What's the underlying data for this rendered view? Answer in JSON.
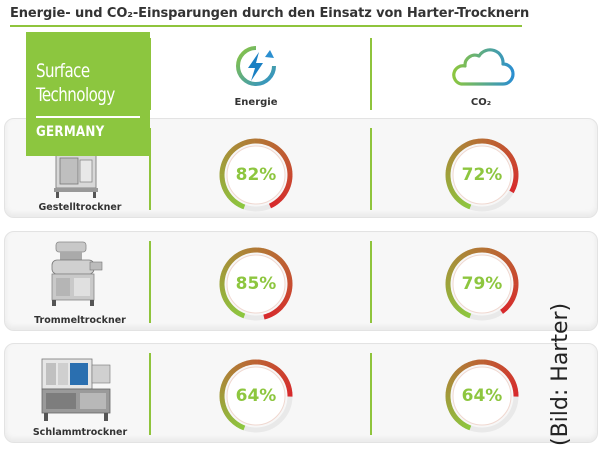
{
  "title": "Energie- und CO₂-Einsparungen durch den Einsatz von Harter-Trocknern",
  "badge": {
    "line1": "Surface",
    "line2": "Technology",
    "line3": "GERMANY"
  },
  "columns": [
    {
      "label": "Energie",
      "icon": "lightning-recycle-icon"
    },
    {
      "label": "CO₂",
      "icon": "cloud-icon"
    }
  ],
  "rows": [
    {
      "label": "Gestelltrockner",
      "energie": "82%",
      "co2": "72%",
      "energie_value": 82,
      "co2_value": 72,
      "icon": "rack-dryer-image"
    },
    {
      "label": "Trommeltrockner",
      "energie": "85%",
      "co2": "79%",
      "energie_value": 85,
      "co2_value": 79,
      "icon": "drum-dryer-image"
    },
    {
      "label": "Schlammtrockner",
      "energie": "64%",
      "co2": "64%",
      "energie_value": 64,
      "co2_value": 64,
      "icon": "sludge-dryer-image"
    }
  ],
  "credit": "(Bild: Harter)",
  "colors": {
    "accent": "#8cc63f",
    "gauge_start": "#8dc63f",
    "gauge_end": "#d9262b",
    "icon_blue": "#1a80c3"
  }
}
